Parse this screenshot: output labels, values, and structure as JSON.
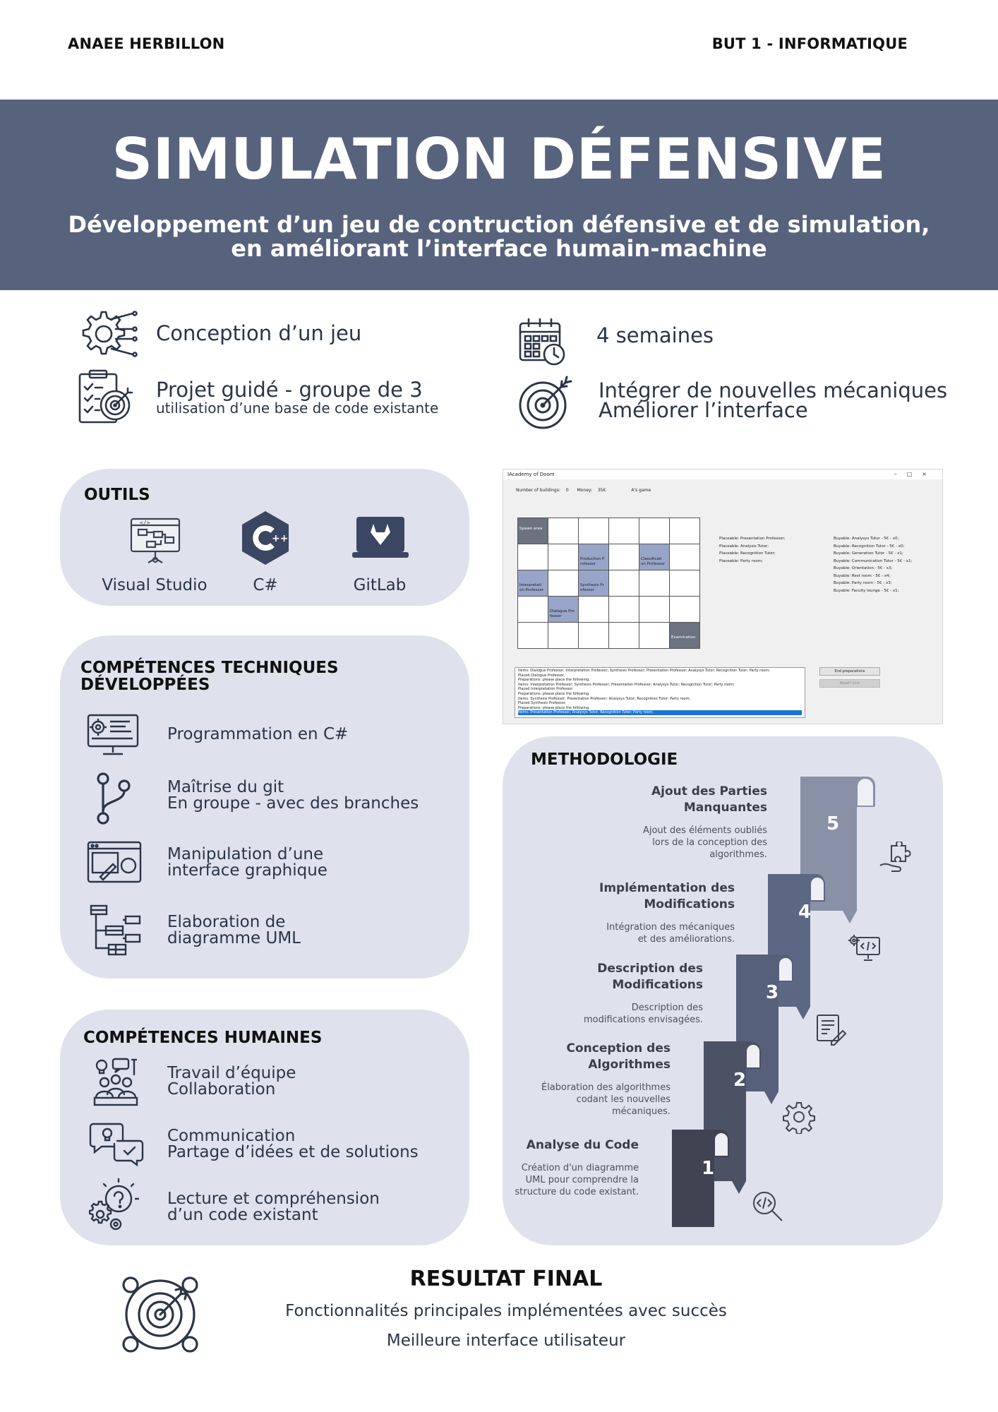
{
  "header": {
    "author": "ANAEE HERBILLON",
    "course": "BUT 1 - INFORMATIQUE"
  },
  "banner": {
    "title": "SIMULATION DÉFENSIVE",
    "subtitle_line1": "Développement d’un jeu de contruction défensive et de simulation,",
    "subtitle_line2": "en améliorant l’interface humain-machine"
  },
  "info": {
    "design": "Conception d’un jeu",
    "duration": "4 semaines",
    "project": "Projet guidé  - groupe de 3",
    "project_note": "utilisation d’une base de code existante",
    "goal_line1": "Intégrer de nouvelles mécaniques",
    "goal_line2": "Améliorer l’interface"
  },
  "tools": {
    "title": "OUTILS",
    "items": [
      {
        "label": "Visual Studio",
        "icon": "visual-studio-icon"
      },
      {
        "label": "C#",
        "icon": "csharp-icon"
      },
      {
        "label": "GitLab",
        "icon": "gitlab-icon"
      }
    ]
  },
  "tech_skills": {
    "title_line1": "COMPÉTENCES TECHNIQUES",
    "title_line2": "DÉVELOPPÉES",
    "items": [
      {
        "line1": "Programmation en C#",
        "line2": ""
      },
      {
        "line1": "Maîtrise du git",
        "line2": "En groupe - avec des branches"
      },
      {
        "line1": "Manipulation d’une",
        "line2": "interface graphique"
      },
      {
        "line1": "Elaboration de",
        "line2": "diagramme UML"
      }
    ]
  },
  "human_skills": {
    "title": "COMPÉTENCES HUMAINES",
    "items": [
      {
        "line1": "Travail d’équipe",
        "line2": "Collaboration"
      },
      {
        "line1": "Communication",
        "line2": "Partage d’idées et de solutions"
      },
      {
        "line1": "Lecture et compréhension",
        "line2": "d’un code existant"
      }
    ]
  },
  "game_window": {
    "title": "IAcademy of Doom",
    "stats": {
      "buildings_label": "Number of buildings:",
      "buildings": "0",
      "money_label": "Money:",
      "money": "35€",
      "turn": "A's game"
    },
    "cells": {
      "spawn": "Spawn area",
      "production": "Production P rofessor",
      "classification": "Classificati on Professor",
      "interpretation": "Interpretati on Professor",
      "synthesis": "Synthesis Pr ofessor",
      "dialogue": "Dialogue Pro fessor",
      "examination": "Examination"
    },
    "placeable": [
      "Placeable: Presentation Professor;",
      "Placeable: Analysis Tutor;",
      "Placeable: Recognition Tutor;",
      "Placeable: Party room;"
    ],
    "buyable": [
      "Buyable: Analysys Tutor - 5€ - x0;",
      "Buyable: Recognition Tutor - 5€ - x0;",
      "Buyable: Generation Tutor - 5€ - x1;",
      "Buyable: Communication Tutor - 5€ - x1;",
      "Buyable: Orientation - 5€ - x3;",
      "Buyable: Rest room - 5€ - x4;",
      "Buyable: Party room - 5€ - x3;",
      "Buyable: Faculty lounge - 5€ - x1;"
    ],
    "log": [
      "Items: Dialogue Professor;  Interpretation Professor;  Synthesis Professor;  Presentation Professor;  Analysys Tutor;  Recognition Tutor;  Party room;",
      "Placed Dialogue Professor.",
      "Preparations: please place the following.",
      "Items: Interpretation Professor;  Synthesis Professor;  Presentation Professor;  Analysys Tutor;  Recognition Tutor;  Party room;",
      "Placed Interpretation Professor.",
      "Preparations: please place the following.",
      "Items: Synthesis Professor;  Presentation Professor;  Analysys Tutor;  Recognition Tutor;  Party room;",
      "Placed Synthesis Professor.",
      "Preparations: please place the following."
    ],
    "log_selected": "Items: Presentation Professor;  Analysys Tutor;  Recognition Tutor;  Party room;",
    "end_button": "End preparations",
    "reset_button": "Reset? Unit"
  },
  "methodology": {
    "title": "METHODOLOGIE",
    "steps": [
      {
        "num": "1",
        "title_line1": "Analyse du Code",
        "title_line2": "",
        "desc_line1": "Création d'un diagramme",
        "desc_line2": "UML pour comprendre la",
        "desc_line3": "structure du code existant.",
        "icon": "code-search-icon",
        "color": "#3f4352"
      },
      {
        "num": "2",
        "title_line1": "Conception des",
        "title_line2": "Algorithmes",
        "desc_line1": "Élaboration des algorithmes",
        "desc_line2": "codant les nouvelles",
        "desc_line3": "mécaniques.",
        "icon": "gear-icon",
        "color": "#4b5264"
      },
      {
        "num": "3",
        "title_line1": "Description des",
        "title_line2": "Modifications",
        "desc_line1": "Description des",
        "desc_line2": "modifications envisagées.",
        "desc_line3": "",
        "icon": "document-edit-icon",
        "color": "#56607a"
      },
      {
        "num": "4",
        "title_line1": "Implémentation des",
        "title_line2": "Modifications",
        "desc_line1": "Intégration des mécaniques",
        "desc_line2": "et des améliorations.",
        "desc_line3": "",
        "icon": "monitor-code-icon",
        "color": "#5c6784"
      },
      {
        "num": "5",
        "title_line1": "Ajout des Parties",
        "title_line2": "Manquantes",
        "desc_line1": "Ajout des éléments oubliés",
        "desc_line2": "lors de la conception des",
        "desc_line3": "algorithmes.",
        "icon": "puzzle-hand-icon",
        "color": "#8891a6"
      }
    ]
  },
  "result": {
    "title": "RESULTAT FINAL",
    "line1": "Fonctionnalités principales implémentées avec succès",
    "line2": "Meilleure interface utilisateur"
  }
}
